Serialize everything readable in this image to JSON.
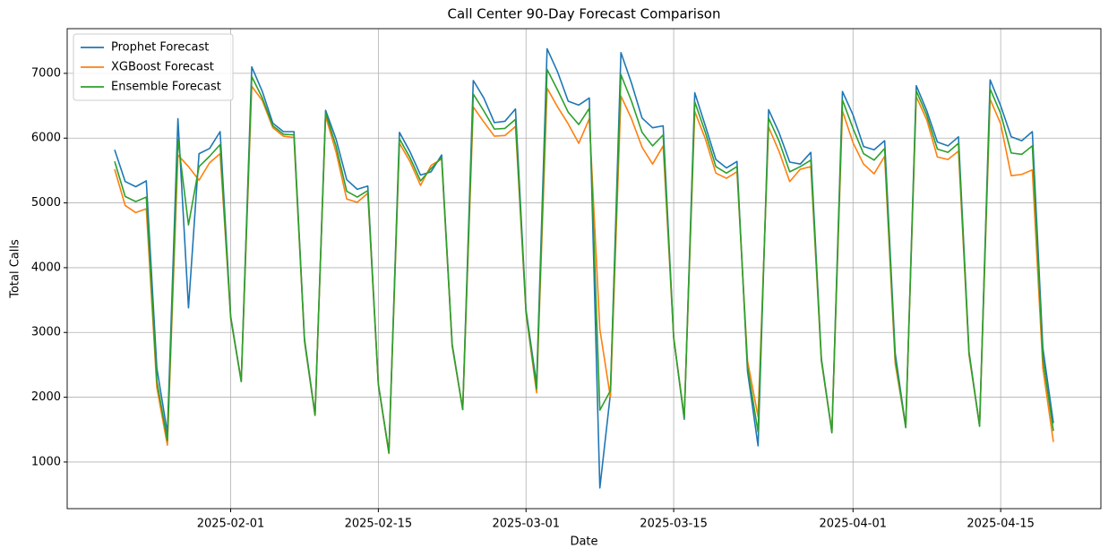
{
  "chart_data": {
    "type": "line",
    "title": "Call Center 90-Day Forecast Comparison",
    "x_label": "Date",
    "y_label": "Total Calls",
    "x": [
      "2025-01-21",
      "2025-01-22",
      "2025-01-23",
      "2025-01-24",
      "2025-01-25",
      "2025-01-26",
      "2025-01-27",
      "2025-01-28",
      "2025-01-29",
      "2025-01-30",
      "2025-01-31",
      "2025-02-01",
      "2025-02-02",
      "2025-02-03",
      "2025-02-04",
      "2025-02-05",
      "2025-02-06",
      "2025-02-07",
      "2025-02-08",
      "2025-02-09",
      "2025-02-10",
      "2025-02-11",
      "2025-02-12",
      "2025-02-13",
      "2025-02-14",
      "2025-02-15",
      "2025-02-16",
      "2025-02-17",
      "2025-02-18",
      "2025-02-19",
      "2025-02-20",
      "2025-02-21",
      "2025-02-22",
      "2025-02-23",
      "2025-02-24",
      "2025-02-25",
      "2025-02-26",
      "2025-02-27",
      "2025-02-28",
      "2025-03-01",
      "2025-03-02",
      "2025-03-03",
      "2025-03-04",
      "2025-03-05",
      "2025-03-06",
      "2025-03-07",
      "2025-03-08",
      "2025-03-09",
      "2025-03-10",
      "2025-03-11",
      "2025-03-12",
      "2025-03-13",
      "2025-03-14",
      "2025-03-15",
      "2025-03-16",
      "2025-03-17",
      "2025-03-18",
      "2025-03-19",
      "2025-03-20",
      "2025-03-21",
      "2025-03-22",
      "2025-03-23",
      "2025-03-24",
      "2025-03-25",
      "2025-03-26",
      "2025-03-27",
      "2025-03-28",
      "2025-03-29",
      "2025-03-30",
      "2025-03-31",
      "2025-04-01",
      "2025-04-02",
      "2025-04-03",
      "2025-04-04",
      "2025-04-05",
      "2025-04-06",
      "2025-04-07",
      "2025-04-08",
      "2025-04-09",
      "2025-04-10",
      "2025-04-11",
      "2025-04-12",
      "2025-04-13",
      "2025-04-14",
      "2025-04-15",
      "2025-04-16",
      "2025-04-17",
      "2025-04-18",
      "2025-04-19",
      "2025-04-20"
    ],
    "series": [
      {
        "name": "Prophet Forecast",
        "color": "#1f77b4",
        "values": [
          5820,
          5330,
          5250,
          5340,
          2450,
          1450,
          6300,
          3380,
          5760,
          5840,
          6100,
          3250,
          2250,
          7100,
          6720,
          6230,
          6100,
          6100,
          2900,
          1730,
          6430,
          5980,
          5360,
          5210,
          5260,
          2200,
          1150,
          6090,
          5790,
          5430,
          5480,
          5740,
          2820,
          1810,
          6890,
          6620,
          6240,
          6260,
          6450,
          3350,
          2200,
          7380,
          7020,
          6570,
          6510,
          6620,
          600,
          2050,
          7320,
          6850,
          6310,
          6160,
          6190,
          2920,
          1660,
          6700,
          6190,
          5670,
          5540,
          5640,
          2400,
          1250,
          6440,
          6080,
          5630,
          5600,
          5780,
          2600,
          1460,
          6720,
          6360,
          5870,
          5820,
          5960,
          2680,
          1540,
          6810,
          6420,
          5940,
          5880,
          6020,
          2700,
          1560,
          6900,
          6500,
          6020,
          5960,
          6100,
          2760,
          1600
        ]
      },
      {
        "name": "XGBoost Forecast",
        "color": "#ff7f0e",
        "values": [
          5520,
          4960,
          4850,
          4910,
          2150,
          1260,
          5740,
          5560,
          5350,
          5620,
          5760,
          3220,
          2250,
          6800,
          6580,
          6160,
          6030,
          6010,
          2860,
          1720,
          6340,
          5780,
          5060,
          5010,
          5150,
          2200,
          1130,
          5920,
          5640,
          5270,
          5580,
          5680,
          2790,
          1820,
          6480,
          6250,
          6030,
          6040,
          6180,
          3300,
          2070,
          6770,
          6480,
          6220,
          5920,
          6300,
          3050,
          2000,
          6650,
          6300,
          5860,
          5600,
          5880,
          2920,
          1700,
          6410,
          5990,
          5460,
          5380,
          5480,
          2560,
          1700,
          6170,
          5790,
          5330,
          5520,
          5560,
          2560,
          1480,
          6420,
          5930,
          5600,
          5450,
          5720,
          2520,
          1550,
          6640,
          6280,
          5710,
          5670,
          5800,
          2650,
          1570,
          6600,
          6220,
          5420,
          5440,
          5510,
          2450,
          1310
        ]
      },
      {
        "name": "Ensemble Forecast",
        "color": "#2ca02c",
        "values": [
          5640,
          5100,
          5020,
          5090,
          2250,
          1330,
          5980,
          4660,
          5560,
          5720,
          5900,
          3230,
          2240,
          6950,
          6620,
          6190,
          6060,
          6050,
          2870,
          1720,
          6390,
          5870,
          5180,
          5090,
          5190,
          2200,
          1140,
          5990,
          5700,
          5340,
          5530,
          5700,
          2800,
          1810,
          6680,
          6420,
          6140,
          6150,
          6290,
          3320,
          2130,
          7060,
          6740,
          6400,
          6210,
          6460,
          1800,
          2100,
          6980,
          6570,
          6090,
          5880,
          6050,
          2920,
          1680,
          6560,
          6090,
          5560,
          5460,
          5560,
          2470,
          1460,
          6310,
          5950,
          5480,
          5560,
          5660,
          2580,
          1450,
          6590,
          6150,
          5760,
          5660,
          5840,
          2600,
          1530,
          6730,
          6350,
          5830,
          5780,
          5920,
          2680,
          1550,
          6760,
          6380,
          5770,
          5750,
          5880,
          2600,
          1480
        ]
      }
    ],
    "xlim": [
      "2025-01-16T12:00:00Z",
      "2025-04-24T12:00:00Z"
    ],
    "xticks": [
      "2025-02-01",
      "2025-02-15",
      "2025-03-01",
      "2025-03-15",
      "2025-04-01",
      "2025-04-15"
    ],
    "ylim": [
      280,
      7690
    ],
    "yticks": [
      1000,
      2000,
      3000,
      4000,
      5000,
      6000,
      7000
    ],
    "grid": true,
    "legend": "upper left"
  }
}
